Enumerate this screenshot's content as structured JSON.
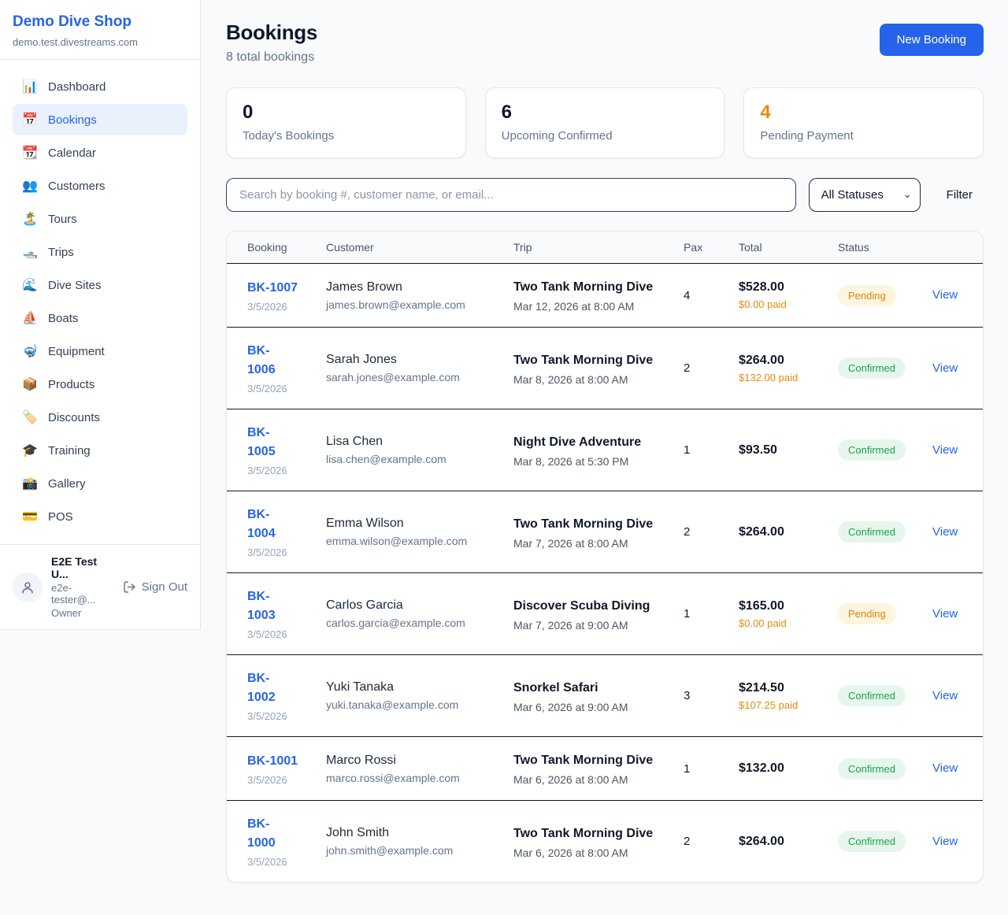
{
  "colors": {
    "brand_blue": "#2563eb",
    "accent_orange": "#e8890c",
    "confirmed_green": "#18a24c",
    "pending_badge_bg": "#fdf5dd",
    "confirmed_badge_bg": "#e7f6ec",
    "page_bg": "#f8fafc"
  },
  "sidebar": {
    "brand": {
      "name": "Demo Dive Shop",
      "domain": "demo.test.divestreams.com"
    },
    "items": [
      {
        "label": "Dashboard",
        "icon": "📊",
        "icon_name": "bar-chart-icon",
        "active": false
      },
      {
        "label": "Bookings",
        "icon": "📅",
        "icon_name": "calendar-icon",
        "active": true
      },
      {
        "label": "Calendar",
        "icon": "📆",
        "icon_name": "tear-off-calendar-icon",
        "active": false
      },
      {
        "label": "Customers",
        "icon": "👥",
        "icon_name": "people-icon",
        "active": false
      },
      {
        "label": "Tours",
        "icon": "🏝️",
        "icon_name": "island-icon",
        "active": false
      },
      {
        "label": "Trips",
        "icon": "🛥️",
        "icon_name": "motorboat-icon",
        "active": false
      },
      {
        "label": "Dive Sites",
        "icon": "🌊",
        "icon_name": "wave-icon",
        "active": false
      },
      {
        "label": "Boats",
        "icon": "⛵",
        "icon_name": "sailboat-icon",
        "active": false
      },
      {
        "label": "Equipment",
        "icon": "🤿",
        "icon_name": "diving-mask-icon",
        "active": false
      },
      {
        "label": "Products",
        "icon": "📦",
        "icon_name": "package-icon",
        "active": false
      },
      {
        "label": "Discounts",
        "icon": "🏷️",
        "icon_name": "label-tag-icon",
        "active": false
      },
      {
        "label": "Training",
        "icon": "🎓",
        "icon_name": "graduation-cap-icon",
        "active": false
      },
      {
        "label": "Gallery",
        "icon": "📸",
        "icon_name": "camera-icon",
        "active": false
      },
      {
        "label": "POS",
        "icon": "💳",
        "icon_name": "credit-card-icon",
        "active": false
      }
    ],
    "user": {
      "name": "E2E Test U...",
      "email": "e2e-tester@...",
      "role": "Owner",
      "sign_out_label": "Sign Out"
    }
  },
  "header": {
    "title": "Bookings",
    "subtitle": "8 total bookings",
    "new_booking_label": "New Booking"
  },
  "stats": [
    {
      "value": "0",
      "label": "Today's Bookings",
      "orange": false
    },
    {
      "value": "6",
      "label": "Upcoming Confirmed",
      "orange": false
    },
    {
      "value": "4",
      "label": "Pending Payment",
      "orange": true
    }
  ],
  "filters": {
    "search_placeholder": "Search by booking #, customer name, or email...",
    "status_selected": "All Statuses",
    "filter_label": "Filter"
  },
  "table": {
    "columns": [
      "Booking",
      "Customer",
      "Trip",
      "Pax",
      "Total",
      "Status"
    ],
    "view_label": "View",
    "rows": [
      {
        "id": "BK-1007",
        "date": "3/5/2026",
        "customer": "James Brown",
        "email": "james.brown@example.com",
        "trip": "Two Tank Morning Dive",
        "trip_date": "Mar 12, 2026 at 8:00 AM",
        "pax": "4",
        "total": "$528.00",
        "paid": "$0.00 paid",
        "status": "Pending"
      },
      {
        "id": "BK-\n1006",
        "date": "3/5/2026",
        "customer": "Sarah Jones",
        "email": "sarah.jones@example.com",
        "trip": "Two Tank Morning Dive",
        "trip_date": "Mar 8, 2026 at 8:00 AM",
        "pax": "2",
        "total": "$264.00",
        "paid": "$132.00 paid",
        "status": "Confirmed"
      },
      {
        "id": "BK-\n1005",
        "date": "3/5/2026",
        "customer": "Lisa Chen",
        "email": "lisa.chen@example.com",
        "trip": "Night Dive Adventure",
        "trip_date": "Mar 8, 2026 at 5:30 PM",
        "pax": "1",
        "total": "$93.50",
        "paid": "",
        "status": "Confirmed"
      },
      {
        "id": "BK-\n1004",
        "date": "3/5/2026",
        "customer": "Emma Wilson",
        "email": "emma.wilson@example.com",
        "trip": "Two Tank Morning Dive",
        "trip_date": "Mar 7, 2026 at 8:00 AM",
        "pax": "2",
        "total": "$264.00",
        "paid": "",
        "status": "Confirmed"
      },
      {
        "id": "BK-\n1003",
        "date": "3/5/2026",
        "customer": "Carlos Garcia",
        "email": "carlos.garcia@example.com",
        "trip": "Discover Scuba Diving",
        "trip_date": "Mar 7, 2026 at 9:00 AM",
        "pax": "1",
        "total": "$165.00",
        "paid": "$0.00 paid",
        "status": "Pending"
      },
      {
        "id": "BK-\n1002",
        "date": "3/5/2026",
        "customer": "Yuki Tanaka",
        "email": "yuki.tanaka@example.com",
        "trip": "Snorkel Safari",
        "trip_date": "Mar 6, 2026 at 9:00 AM",
        "pax": "3",
        "total": "$214.50",
        "paid": "$107.25 paid",
        "status": "Confirmed"
      },
      {
        "id": "BK-1001",
        "date": "3/5/2026",
        "customer": "Marco Rossi",
        "email": "marco.rossi@example.com",
        "trip": "Two Tank Morning Dive",
        "trip_date": "Mar 6, 2026 at 8:00 AM",
        "pax": "1",
        "total": "$132.00",
        "paid": "",
        "status": "Confirmed"
      },
      {
        "id": "BK-\n1000",
        "date": "3/5/2026",
        "customer": "John Smith",
        "email": "john.smith@example.com",
        "trip": "Two Tank Morning Dive",
        "trip_date": "Mar 6, 2026 at 8:00 AM",
        "pax": "2",
        "total": "$264.00",
        "paid": "",
        "status": "Confirmed"
      }
    ]
  }
}
